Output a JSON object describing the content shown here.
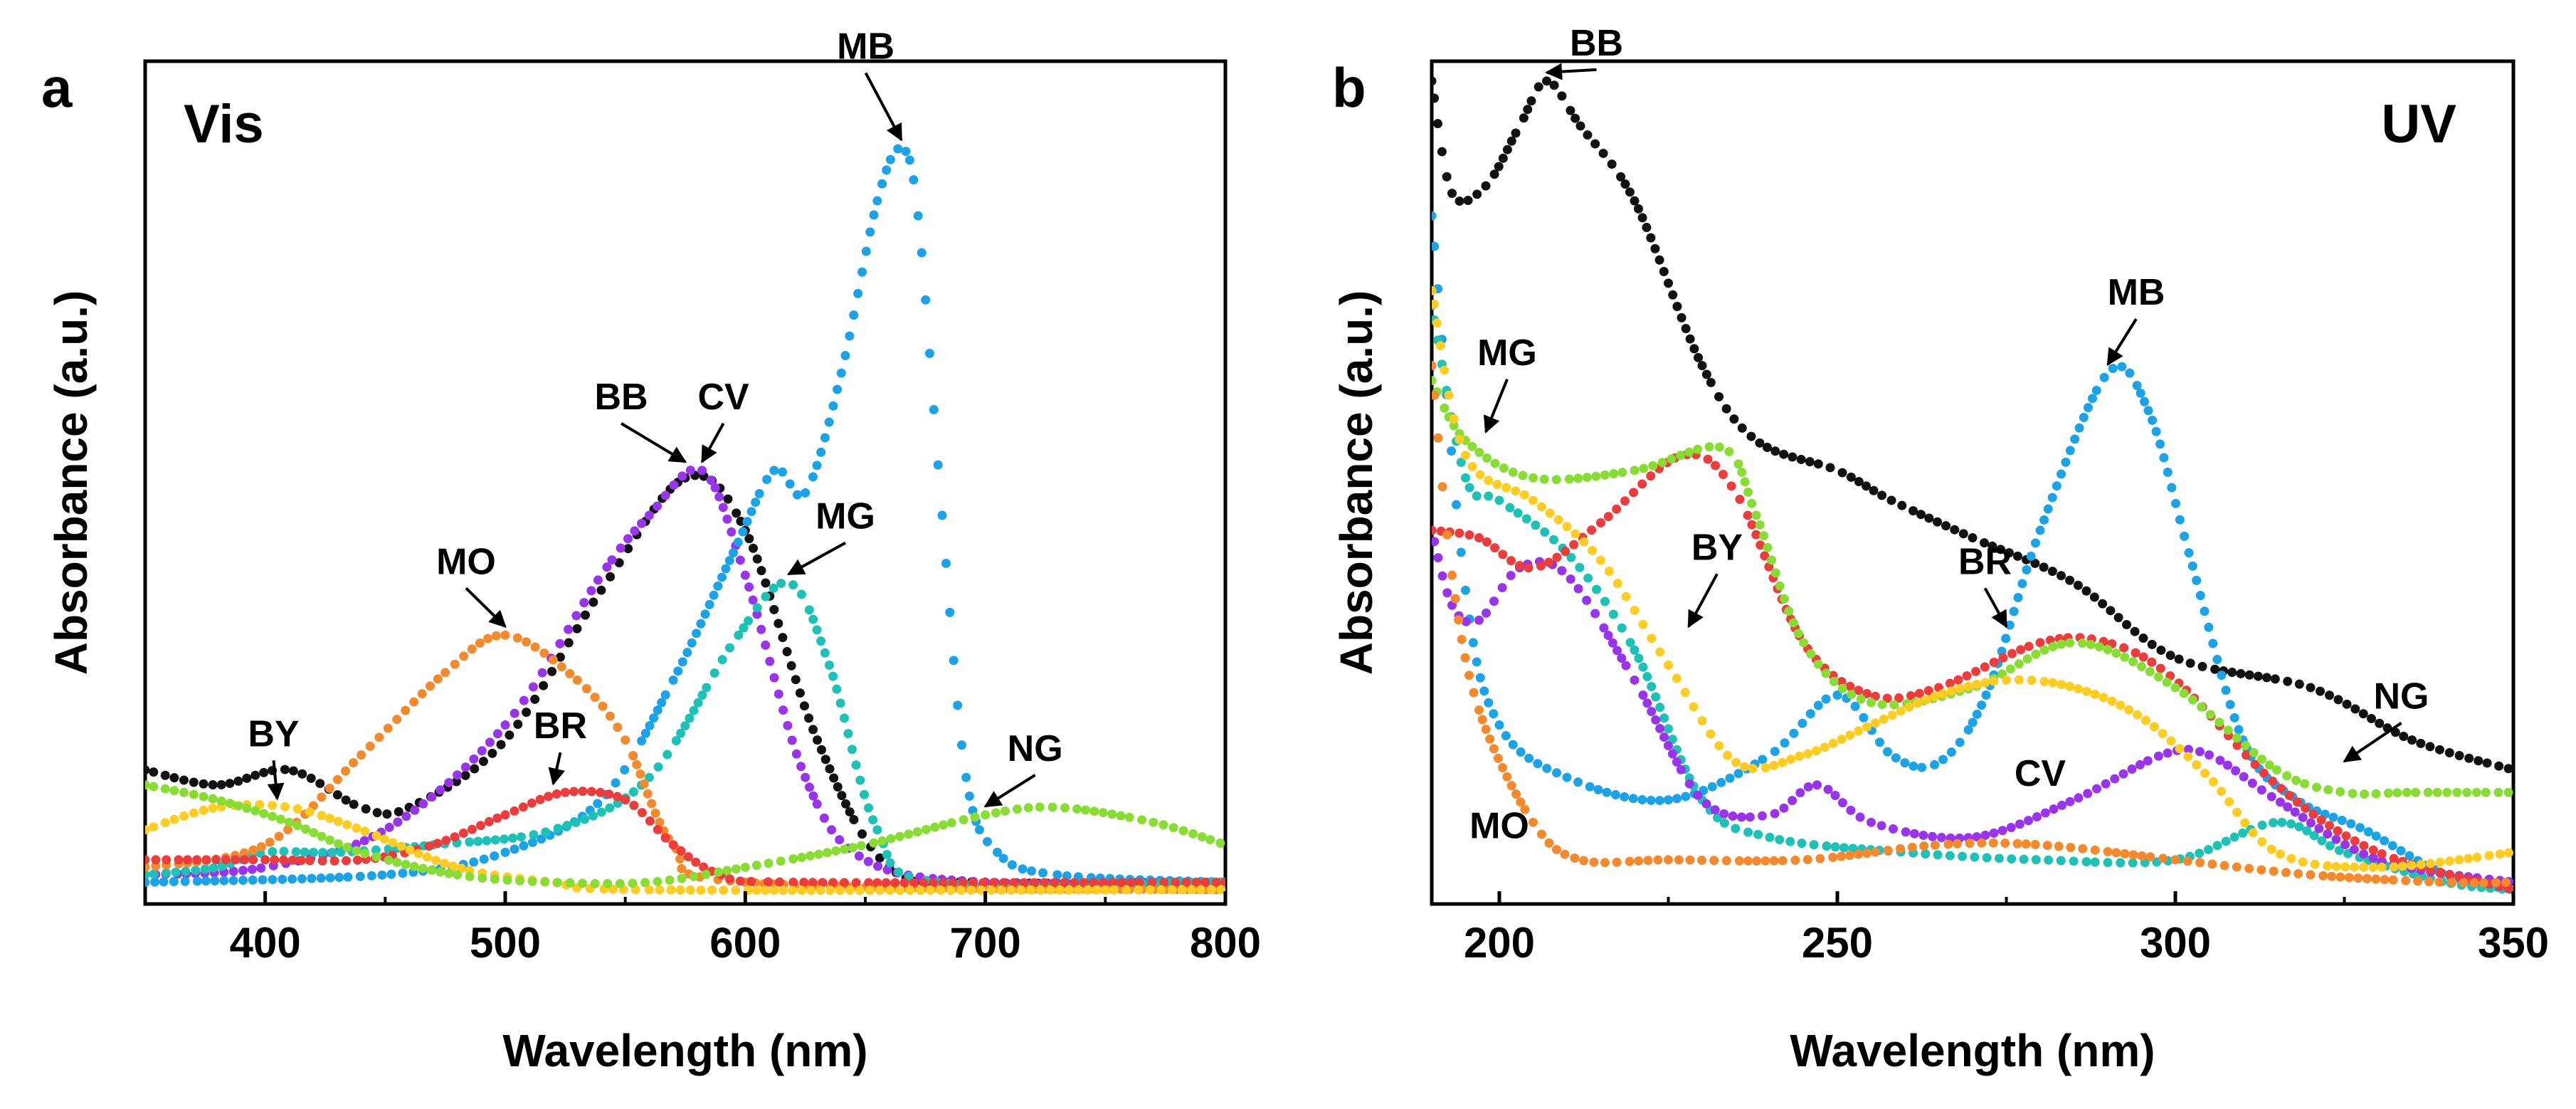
{
  "chart_data": [
    {
      "type": "line",
      "panel_letter": "a",
      "inset_label": "Vis",
      "xlabel": "Wavelength (nm)",
      "ylabel": "Absorbance (a.u.)",
      "xlim": [
        350,
        800
      ],
      "ylim": [
        0,
        1.0
      ],
      "xticks": [
        400,
        500,
        600,
        700,
        800
      ],
      "xtick_labels": [
        "400",
        "500",
        "600",
        "700",
        "800"
      ],
      "series": [
        {
          "name": "BB",
          "color": "#111111",
          "points": [
            [
              350,
              0.16
            ],
            [
              380,
              0.14
            ],
            [
              410,
              0.16
            ],
            [
              440,
              0.11
            ],
            [
              460,
              0.11
            ],
            [
              500,
              0.2
            ],
            [
              540,
              0.4
            ],
            [
              575,
              0.55
            ],
            [
              600,
              0.48
            ],
            [
              630,
              0.2
            ],
            [
              660,
              0.03
            ],
            [
              700,
              0.01
            ],
            [
              800,
              0.01
            ]
          ]
        },
        {
          "name": "CV",
          "color": "#9933ee",
          "points": [
            [
              350,
              0.02
            ],
            [
              400,
              0.03
            ],
            [
              450,
              0.08
            ],
            [
              500,
              0.22
            ],
            [
              540,
              0.42
            ],
            [
              560,
              0.5
            ],
            [
              582,
              0.56
            ],
            [
              600,
              0.42
            ],
            [
              625,
              0.15
            ],
            [
              650,
              0.04
            ],
            [
              700,
              0.01
            ],
            [
              800,
              0.01
            ]
          ]
        },
        {
          "name": "MB",
          "color": "#1aa3e8",
          "points": [
            [
              350,
              0.01
            ],
            [
              450,
              0.02
            ],
            [
              500,
              0.05
            ],
            [
              540,
              0.12
            ],
            [
              570,
              0.28
            ],
            [
              595,
              0.45
            ],
            [
              612,
              0.56
            ],
            [
              625,
              0.53
            ],
            [
              640,
              0.69
            ],
            [
              655,
              0.92
            ],
            [
              665,
              0.99
            ],
            [
              672,
              0.9
            ],
            [
              682,
              0.5
            ],
            [
              692,
              0.15
            ],
            [
              705,
              0.05
            ],
            [
              730,
              0.02
            ],
            [
              800,
              0.01
            ]
          ]
        },
        {
          "name": "MG",
          "color": "#1cc2b8",
          "points": [
            [
              350,
              0.02
            ],
            [
              380,
              0.03
            ],
            [
              400,
              0.05
            ],
            [
              430,
              0.05
            ],
            [
              470,
              0.06
            ],
            [
              520,
              0.08
            ],
            [
              560,
              0.15
            ],
            [
              595,
              0.33
            ],
            [
              618,
              0.41
            ],
            [
              635,
              0.3
            ],
            [
              655,
              0.08
            ],
            [
              680,
              0.01
            ],
            [
              800,
              0.01
            ]
          ]
        },
        {
          "name": "MO",
          "color": "#f5892b",
          "points": [
            [
              350,
              0.03
            ],
            [
              400,
              0.06
            ],
            [
              440,
              0.18
            ],
            [
              475,
              0.29
            ],
            [
              500,
              0.34
            ],
            [
              530,
              0.28
            ],
            [
              550,
              0.2
            ],
            [
              570,
              0.06
            ],
            [
              600,
              0.01
            ],
            [
              800,
              0.0
            ]
          ]
        },
        {
          "name": "BR",
          "color": "#ee3b3b",
          "points": [
            [
              350,
              0.04
            ],
            [
              400,
              0.04
            ],
            [
              440,
              0.04
            ],
            [
              470,
              0.06
            ],
            [
              500,
              0.1
            ],
            [
              525,
              0.13
            ],
            [
              550,
              0.12
            ],
            [
              570,
              0.06
            ],
            [
              590,
              0.02
            ],
            [
              620,
              0.01
            ],
            [
              800,
              0.01
            ]
          ]
        },
        {
          "name": "BY",
          "color": "#ffcc22",
          "points": [
            [
              350,
              0.08
            ],
            [
              380,
              0.11
            ],
            [
              410,
              0.11
            ],
            [
              440,
              0.08
            ],
            [
              480,
              0.03
            ],
            [
              520,
              0.01
            ],
            [
              560,
              0.0
            ],
            [
              800,
              0.0
            ]
          ]
        },
        {
          "name": "NG",
          "color": "#88dd33",
          "points": [
            [
              350,
              0.14
            ],
            [
              380,
              0.12
            ],
            [
              410,
              0.09
            ],
            [
              440,
              0.05
            ],
            [
              480,
              0.02
            ],
            [
              520,
              0.01
            ],
            [
              560,
              0.01
            ],
            [
              600,
              0.03
            ],
            [
              650,
              0.06
            ],
            [
              700,
              0.1
            ],
            [
              730,
              0.11
            ],
            [
              770,
              0.09
            ],
            [
              800,
              0.06
            ]
          ]
        }
      ],
      "annotations": [
        {
          "text": "MB",
          "x": 665,
          "y": 0.99
        },
        {
          "text": "BB",
          "x": 575,
          "y": 0.56
        },
        {
          "text": "CV",
          "x": 582,
          "y": 0.56
        },
        {
          "text": "MG",
          "x": 618,
          "y": 0.41
        },
        {
          "text": "MO",
          "x": 500,
          "y": 0.34
        },
        {
          "text": "BR",
          "x": 520,
          "y": 0.13
        },
        {
          "text": "BY",
          "x": 405,
          "y": 0.11
        },
        {
          "text": "NG",
          "x": 700,
          "y": 0.1
        }
      ]
    },
    {
      "type": "line",
      "panel_letter": "b",
      "inset_label": "UV",
      "xlabel": "Wavelength (nm)",
      "ylabel": "Absorbance (a.u.)",
      "xlim": [
        190,
        350
      ],
      "ylim": [
        0,
        1.0
      ],
      "xticks": [
        200,
        250,
        300,
        350
      ],
      "xtick_labels": [
        "200",
        "250",
        "300",
        "350"
      ],
      "series": [
        {
          "name": "BB",
          "color": "#111111",
          "points": [
            [
              190,
              1.08
            ],
            [
              193,
              0.93
            ],
            [
              198,
              0.94
            ],
            [
              203,
              1.02
            ],
            [
              207,
              1.08
            ],
            [
              212,
              1.02
            ],
            [
              220,
              0.92
            ],
            [
              230,
              0.7
            ],
            [
              238,
              0.6
            ],
            [
              250,
              0.56
            ],
            [
              258,
              0.52
            ],
            [
              270,
              0.47
            ],
            [
              285,
              0.41
            ],
            [
              300,
              0.31
            ],
            [
              320,
              0.27
            ],
            [
              335,
              0.2
            ],
            [
              350,
              0.16
            ]
          ]
        },
        {
          "name": "MB",
          "color": "#1aa3e8",
          "points": [
            [
              190,
              0.9
            ],
            [
              195,
              0.4
            ],
            [
              200,
              0.22
            ],
            [
              210,
              0.15
            ],
            [
              225,
              0.12
            ],
            [
              240,
              0.18
            ],
            [
              250,
              0.26
            ],
            [
              258,
              0.18
            ],
            [
              265,
              0.17
            ],
            [
              272,
              0.26
            ],
            [
              280,
              0.48
            ],
            [
              290,
              0.69
            ],
            [
              296,
              0.64
            ],
            [
              302,
              0.45
            ],
            [
              310,
              0.2
            ],
            [
              318,
              0.12
            ],
            [
              328,
              0.08
            ],
            [
              340,
              0.02
            ],
            [
              350,
              0.0
            ]
          ]
        },
        {
          "name": "MG",
          "color": "#1cc2b8",
          "points": [
            [
              190,
              0.78
            ],
            [
              195,
              0.55
            ],
            [
              200,
              0.52
            ],
            [
              210,
              0.45
            ],
            [
              220,
              0.32
            ],
            [
              230,
              0.12
            ],
            [
              240,
              0.07
            ],
            [
              260,
              0.05
            ],
            [
              280,
              0.04
            ],
            [
              300,
              0.04
            ],
            [
              315,
              0.09
            ],
            [
              325,
              0.05
            ],
            [
              340,
              0.01
            ],
            [
              350,
              0.0
            ]
          ]
        },
        {
          "name": "CV",
          "color": "#9933ee",
          "points": [
            [
              190,
              0.48
            ],
            [
              193,
              0.38
            ],
            [
              197,
              0.36
            ],
            [
              203,
              0.43
            ],
            [
              210,
              0.42
            ],
            [
              220,
              0.28
            ],
            [
              230,
              0.12
            ],
            [
              240,
              0.1
            ],
            [
              247,
              0.14
            ],
            [
              255,
              0.09
            ],
            [
              270,
              0.07
            ],
            [
              285,
              0.12
            ],
            [
              298,
              0.18
            ],
            [
              305,
              0.18
            ],
            [
              315,
              0.12
            ],
            [
              330,
              0.04
            ],
            [
              350,
              0.01
            ]
          ]
        },
        {
          "name": "BR",
          "color": "#ee3b3b",
          "points": [
            [
              190,
              0.48
            ],
            [
              197,
              0.47
            ],
            [
              205,
              0.43
            ],
            [
              215,
              0.49
            ],
            [
              227,
              0.58
            ],
            [
              235,
              0.53
            ],
            [
              245,
              0.33
            ],
            [
              255,
              0.26
            ],
            [
              265,
              0.27
            ],
            [
              280,
              0.33
            ],
            [
              290,
              0.33
            ],
            [
              300,
              0.28
            ],
            [
              315,
              0.14
            ],
            [
              330,
              0.05
            ],
            [
              350,
              0.0
            ]
          ]
        },
        {
          "name": "NG",
          "color": "#88dd33",
          "points": [
            [
              190,
              0.68
            ],
            [
              195,
              0.6
            ],
            [
              205,
              0.55
            ],
            [
              220,
              0.56
            ],
            [
              233,
              0.59
            ],
            [
              238,
              0.5
            ],
            [
              245,
              0.33
            ],
            [
              255,
              0.25
            ],
            [
              270,
              0.27
            ],
            [
              285,
              0.33
            ],
            [
              300,
              0.27
            ],
            [
              315,
              0.16
            ],
            [
              325,
              0.13
            ],
            [
              335,
              0.13
            ],
            [
              350,
              0.13
            ]
          ]
        },
        {
          "name": "BY",
          "color": "#ffcc22",
          "points": [
            [
              190,
              0.8
            ],
            [
              195,
              0.58
            ],
            [
              205,
              0.52
            ],
            [
              215,
              0.44
            ],
            [
              225,
              0.3
            ],
            [
              235,
              0.17
            ],
            [
              245,
              0.18
            ],
            [
              255,
              0.22
            ],
            [
              265,
              0.26
            ],
            [
              275,
              0.28
            ],
            [
              285,
              0.27
            ],
            [
              295,
              0.23
            ],
            [
              305,
              0.15
            ],
            [
              315,
              0.05
            ],
            [
              330,
              0.03
            ],
            [
              350,
              0.05
            ]
          ]
        },
        {
          "name": "MO",
          "color": "#f5892b",
          "points": [
            [
              190,
              0.7
            ],
            [
              193,
              0.42
            ],
            [
              197,
              0.24
            ],
            [
              205,
              0.09
            ],
            [
              212,
              0.04
            ],
            [
              225,
              0.04
            ],
            [
              245,
              0.04
            ],
            [
              265,
              0.06
            ],
            [
              280,
              0.06
            ],
            [
              300,
              0.04
            ],
            [
              320,
              0.02
            ],
            [
              340,
              0.01
            ],
            [
              350,
              0.01
            ]
          ]
        }
      ],
      "annotations": [
        {
          "text": "BB",
          "x": 207,
          "y": 1.08
        },
        {
          "text": "MB",
          "x": 290,
          "y": 0.69
        },
        {
          "text": "MG",
          "x": 198,
          "y": 0.6
        },
        {
          "text": "BY",
          "x": 228,
          "y": 0.34
        },
        {
          "text": "BR",
          "x": 275,
          "y": 0.34
        },
        {
          "text": "NG",
          "x": 325,
          "y": 0.16
        },
        {
          "text": "CV",
          "x": 280,
          "y": 0.12
        },
        {
          "text": "MO",
          "x": 200,
          "y": 0.05
        }
      ]
    }
  ]
}
